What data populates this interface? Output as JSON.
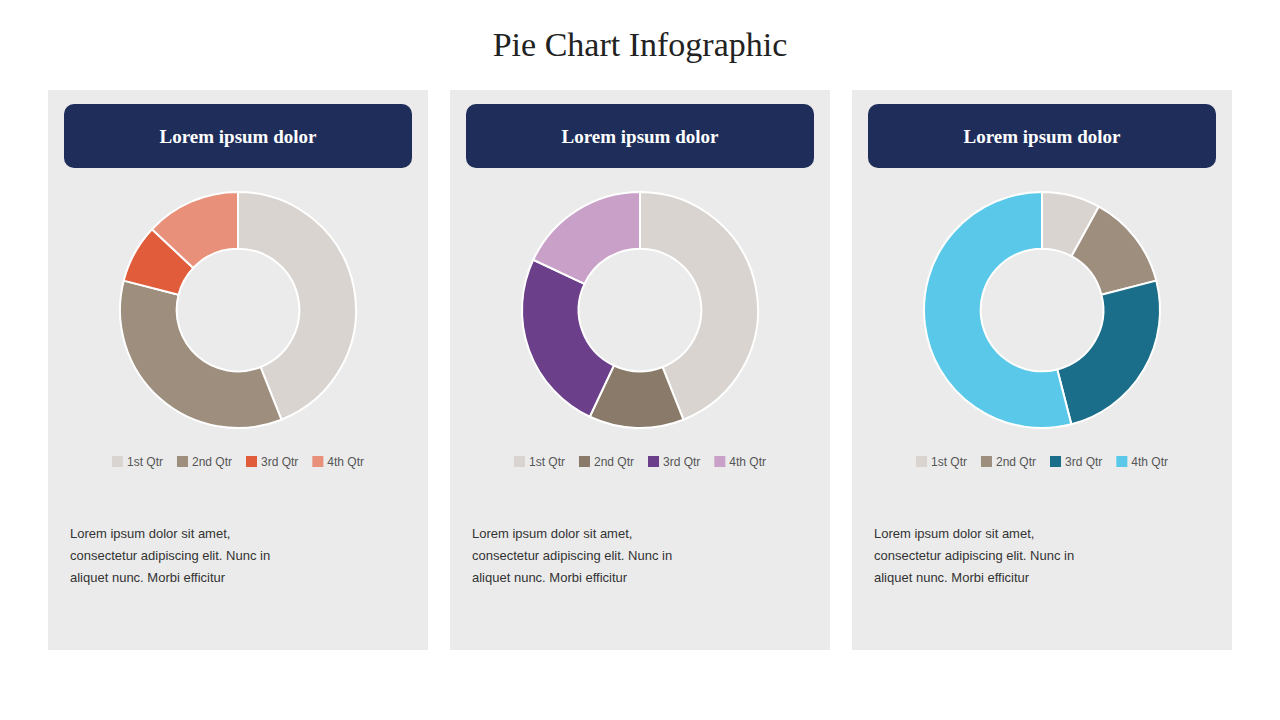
{
  "title": "Pie Chart Infographic",
  "chart_data": [
    {
      "type": "pie",
      "subtitle": "Lorem ipsum dolor",
      "annotations": [
        "Lorem ipsum dolor sit amet,\nconsectetur adipiscing elit. Nunc in\naliquet nunc. Morbi efficitur"
      ],
      "categories": [
        "1st Qtr",
        "2nd Qtr",
        "3rd Qtr",
        "4th Qtr"
      ],
      "values": [
        44,
        35,
        8,
        13
      ],
      "colors": [
        "#d9d4cf",
        "#9e8e7e",
        "#e05c3a",
        "#e8907a"
      ],
      "legend": "bottom"
    },
    {
      "type": "pie",
      "subtitle": "Lorem ipsum dolor",
      "annotations": [
        "Lorem ipsum dolor sit amet,\nconsectetur adipiscing elit. Nunc in\naliquet nunc. Morbi efficitur"
      ],
      "categories": [
        "1st Qtr",
        "2nd Qtr",
        "3rd Qtr",
        "4th Qtr"
      ],
      "values": [
        44,
        13,
        25,
        18
      ],
      "colors": [
        "#d9d4cf",
        "#8a7a6a",
        "#6b3f8a",
        "#c8a0c8"
      ],
      "legend": "bottom"
    },
    {
      "type": "pie",
      "subtitle": "Lorem ipsum dolor",
      "annotations": [
        "Lorem ipsum dolor sit amet,\nconsectetur adipiscing elit. Nunc in\naliquet nunc. Morbi efficitur"
      ],
      "categories": [
        "1st Qtr",
        "2nd Qtr",
        "3rd Qtr",
        "4th Qtr"
      ],
      "values": [
        8,
        13,
        25,
        54
      ],
      "colors": [
        "#d9d4cf",
        "#9e8e7e",
        "#1a6e8a",
        "#5ac8e8"
      ],
      "legend": "bottom"
    }
  ]
}
